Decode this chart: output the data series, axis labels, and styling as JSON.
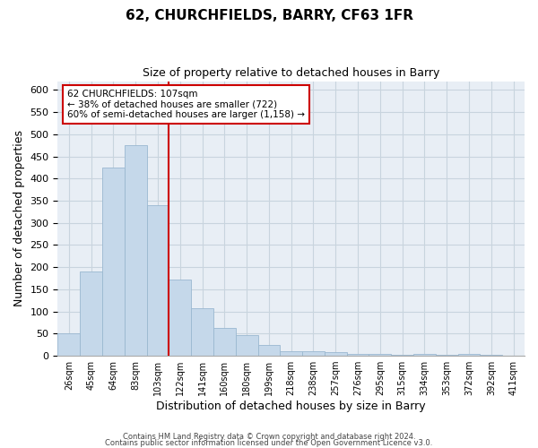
{
  "title": "62, CHURCHFIELDS, BARRY, CF63 1FR",
  "subtitle": "Size of property relative to detached houses in Barry",
  "xlabel": "Distribution of detached houses by size in Barry",
  "ylabel": "Number of detached properties",
  "bar_color": "#c5d8ea",
  "bar_edge_color": "#9ab8d0",
  "bin_labels": [
    "26sqm",
    "45sqm",
    "64sqm",
    "83sqm",
    "103sqm",
    "122sqm",
    "141sqm",
    "160sqm",
    "180sqm",
    "199sqm",
    "218sqm",
    "238sqm",
    "257sqm",
    "276sqm",
    "295sqm",
    "315sqm",
    "334sqm",
    "353sqm",
    "372sqm",
    "392sqm",
    "411sqm"
  ],
  "bar_heights": [
    50,
    190,
    425,
    475,
    340,
    172,
    108,
    62,
    46,
    25,
    10,
    11,
    8,
    5,
    4,
    3,
    5,
    3,
    5,
    3,
    0
  ],
  "vline_bin_index": 4,
  "annotation_line1": "62 CHURCHFIELDS: 107sqm",
  "annotation_line2": "← 38% of detached houses are smaller (722)",
  "annotation_line3": "60% of semi-detached houses are larger (1,158) →",
  "ylim": [
    0,
    620
  ],
  "yticks": [
    0,
    50,
    100,
    150,
    200,
    250,
    300,
    350,
    400,
    450,
    500,
    550,
    600
  ],
  "footer_line1": "Contains HM Land Registry data © Crown copyright and database right 2024.",
  "footer_line2": "Contains public sector information licensed under the Open Government Licence v3.0.",
  "background_color": "#ffffff",
  "plot_bg_color": "#e8eef5",
  "grid_color": "#c8d4de",
  "annotation_box_color": "#ffffff",
  "annotation_box_edge": "#cc0000",
  "vline_color": "#cc0000"
}
